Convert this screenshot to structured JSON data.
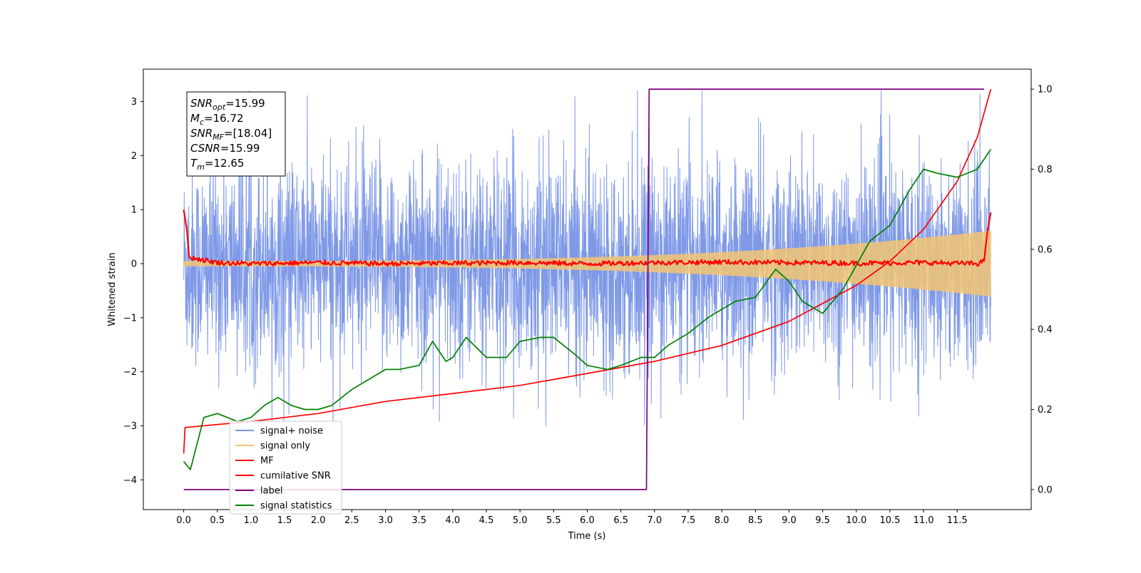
{
  "chart_data": {
    "type": "line",
    "title": "",
    "xlabel": "Time (s)",
    "ylabel": "Whitened strain",
    "y2label": "",
    "xlim": [
      -0.6,
      12.6
    ],
    "ylim": [
      -4.55,
      3.6
    ],
    "y2lim": [
      -0.05,
      1.05
    ],
    "x_ticks": [
      "0.0",
      "0.5",
      "1.0",
      "1.5",
      "2.0",
      "2.5",
      "3.0",
      "3.5",
      "4.0",
      "4.5",
      "5.0",
      "5.5",
      "6.0",
      "6.5",
      "7.0",
      "7.5",
      "8.0",
      "8.5",
      "9.0",
      "9.5",
      "10.0",
      "10.5",
      "11.0",
      "11.5"
    ],
    "y_ticks": [
      "−4",
      "−3",
      "−2",
      "−1",
      "0",
      "1",
      "2",
      "3"
    ],
    "y2_ticks": [
      "0.0",
      "0.2",
      "0.4",
      "0.6",
      "0.8",
      "1.0"
    ],
    "legend_position": "lower-left",
    "series": [
      {
        "name": "signal+ noise",
        "color": "#7893e6",
        "axis": "left",
        "style": "noise",
        "x_range": [
          0.0,
          12.0
        ],
        "amplitude_range": [
          -3.0,
          3.2
        ]
      },
      {
        "name": "signal only",
        "color": "#f2c472",
        "axis": "left",
        "style": "chirp",
        "x_range": [
          0.0,
          12.0
        ],
        "amplitude_start": 0.04,
        "amplitude_end": 0.6
      },
      {
        "name": "MF",
        "color": "#ff0000",
        "axis": "left",
        "x": [
          0.0,
          0.05,
          0.08,
          0.5,
          1.0,
          2.0,
          3.0,
          4.0,
          5.0,
          6.0,
          7.0,
          8.0,
          9.0,
          10.0,
          11.0,
          11.8,
          11.9,
          11.95,
          12.0
        ],
        "y": [
          1.0,
          0.6,
          0.12,
          0.02,
          0.0,
          0.02,
          0.0,
          0.01,
          0.02,
          0.0,
          0.02,
          0.03,
          0.02,
          0.01,
          0.02,
          0.0,
          0.05,
          0.6,
          0.95
        ]
      },
      {
        "name": "cumilative SNR",
        "color": "#ff0000",
        "axis": "right",
        "x": [
          0.0,
          0.02,
          1.0,
          2.0,
          3.0,
          4.0,
          5.0,
          6.0,
          7.0,
          8.0,
          9.0,
          10.0,
          10.5,
          11.0,
          11.5,
          11.8,
          12.0
        ],
        "y": [
          0.09,
          0.155,
          0.17,
          0.19,
          0.22,
          0.24,
          0.26,
          0.29,
          0.32,
          0.36,
          0.42,
          0.51,
          0.57,
          0.65,
          0.77,
          0.88,
          1.0
        ]
      },
      {
        "name": "label",
        "color": "#800080",
        "axis": "right",
        "x": [
          0.0,
          6.88,
          6.92,
          11.9
        ],
        "y": [
          0.0,
          0.0,
          1.0,
          1.0
        ]
      },
      {
        "name": "signal statistics",
        "color": "#008000",
        "axis": "right",
        "x": [
          0.0,
          0.1,
          0.3,
          0.5,
          0.8,
          1.0,
          1.2,
          1.4,
          1.6,
          1.8,
          2.0,
          2.2,
          2.5,
          2.8,
          3.0,
          3.2,
          3.5,
          3.7,
          3.9,
          4.0,
          4.2,
          4.5,
          4.8,
          5.0,
          5.3,
          5.5,
          5.8,
          6.0,
          6.3,
          6.5,
          6.8,
          7.0,
          7.2,
          7.5,
          7.8,
          8.0,
          8.2,
          8.5,
          8.8,
          9.0,
          9.2,
          9.5,
          9.8,
          10.0,
          10.2,
          10.5,
          10.8,
          11.0,
          11.2,
          11.5,
          11.8,
          12.0
        ],
        "y": [
          0.07,
          0.05,
          0.18,
          0.19,
          0.17,
          0.18,
          0.21,
          0.23,
          0.21,
          0.2,
          0.2,
          0.21,
          0.25,
          0.28,
          0.3,
          0.3,
          0.31,
          0.37,
          0.32,
          0.33,
          0.38,
          0.33,
          0.33,
          0.37,
          0.38,
          0.38,
          0.34,
          0.31,
          0.3,
          0.31,
          0.33,
          0.33,
          0.36,
          0.39,
          0.43,
          0.45,
          0.47,
          0.48,
          0.55,
          0.52,
          0.47,
          0.44,
          0.5,
          0.56,
          0.62,
          0.66,
          0.75,
          0.8,
          0.79,
          0.78,
          0.8,
          0.85
        ]
      }
    ],
    "annotations": [
      {
        "name": "snr-opt",
        "label": "SNR",
        "subscript": "opt",
        "value": "=15.99"
      },
      {
        "name": "chirp-mass",
        "label": "M",
        "subscript": "c",
        "value": "=16.72"
      },
      {
        "name": "snr-mf",
        "label": "SNR",
        "subscript": "MF",
        "value": "=[18.04]"
      },
      {
        "name": "csnr",
        "label": "CSNR",
        "subscript": "",
        "value": "=15.99"
      },
      {
        "name": "merger-time",
        "label": "T",
        "subscript": "m",
        "value": "=12.65"
      }
    ]
  }
}
